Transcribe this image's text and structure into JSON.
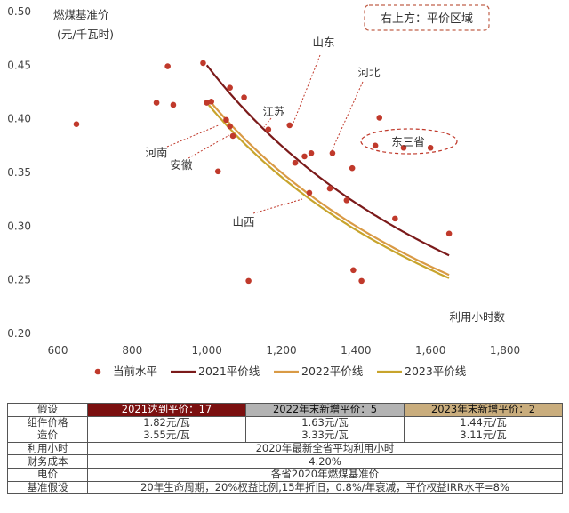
{
  "chart_data": {
    "type": "scatter",
    "ylabel": "燃煤基准价\n(元/千瓦时)",
    "xlabel": "利用小时数",
    "xlim": [
      600,
      1800
    ],
    "ylim": [
      0.2,
      0.5
    ],
    "x_ticks": [
      "600",
      "800",
      "1,000",
      "1,200",
      "1,400",
      "1,600",
      "1,800"
    ],
    "y_ticks": [
      "0.20",
      "0.25",
      "0.30",
      "0.35",
      "0.40",
      "0.45",
      "0.50"
    ],
    "grid": false,
    "legend_position": "bottom",
    "scatter": {
      "name": "当前水平",
      "color": "#c0392b",
      "points": [
        {
          "x": 650,
          "y": 0.395
        },
        {
          "x": 865,
          "y": 0.415
        },
        {
          "x": 895,
          "y": 0.449
        },
        {
          "x": 910,
          "y": 0.413
        },
        {
          "x": 990,
          "y": 0.452
        },
        {
          "x": 1000,
          "y": 0.415
        },
        {
          "x": 1012,
          "y": 0.416
        },
        {
          "x": 1030,
          "y": 0.351
        },
        {
          "x": 1052,
          "y": 0.399
        },
        {
          "x": 1062,
          "y": 0.429
        },
        {
          "x": 1062,
          "y": 0.393
        },
        {
          "x": 1070,
          "y": 0.384
        },
        {
          "x": 1100,
          "y": 0.42
        },
        {
          "x": 1112,
          "y": 0.249
        },
        {
          "x": 1165,
          "y": 0.39
        },
        {
          "x": 1222,
          "y": 0.394
        },
        {
          "x": 1237,
          "y": 0.359
        },
        {
          "x": 1262,
          "y": 0.365
        },
        {
          "x": 1275,
          "y": 0.331
        },
        {
          "x": 1280,
          "y": 0.368
        },
        {
          "x": 1330,
          "y": 0.335
        },
        {
          "x": 1337,
          "y": 0.368
        },
        {
          "x": 1375,
          "y": 0.324
        },
        {
          "x": 1390,
          "y": 0.354
        },
        {
          "x": 1393,
          "y": 0.259
        },
        {
          "x": 1415,
          "y": 0.249
        },
        {
          "x": 1452,
          "y": 0.375
        },
        {
          "x": 1463,
          "y": 0.401
        },
        {
          "x": 1505,
          "y": 0.307
        },
        {
          "x": 1528,
          "y": 0.373
        },
        {
          "x": 1600,
          "y": 0.373
        },
        {
          "x": 1650,
          "y": 0.293
        }
      ]
    },
    "lines": [
      {
        "name": "2021平价线",
        "color": "#7b1a1a",
        "k": 450,
        "x_start": 1000,
        "x_end": 1650
      },
      {
        "name": "2022平价线",
        "color": "#d99a45",
        "k": 420,
        "x_start": 1010,
        "x_end": 1650
      },
      {
        "name": "2023平价线",
        "color": "#c8a42c",
        "k": 415,
        "x_start": 1005,
        "x_end": 1650
      }
    ],
    "province_labels": [
      "山东",
      "河北",
      "江苏",
      "河南",
      "安徽",
      "东三省",
      "山西"
    ],
    "callout": "右上方：平价区域"
  },
  "table": {
    "header": [
      "假设",
      "2021达到平价：17",
      "2022年末新增平价：5",
      "2023年末新增平价：2"
    ],
    "rows": [
      [
        "组件价格",
        "1.82元/瓦",
        "1.63元/瓦",
        "1.44元/瓦"
      ],
      [
        "造价",
        "3.55元/瓦",
        "3.33元/瓦",
        "3.11元/瓦"
      ]
    ],
    "shared_rows": [
      [
        "利用小时",
        "2020年最新全省平均利用小时"
      ],
      [
        "财务成本",
        "4.20%"
      ],
      [
        "电价",
        "各省2020年燃煤基准价"
      ],
      [
        "基准假设",
        "20年生命周期，20%权益比例,15年折旧，0.8%/年衰减，平价权益IRR水平=8%"
      ]
    ]
  }
}
